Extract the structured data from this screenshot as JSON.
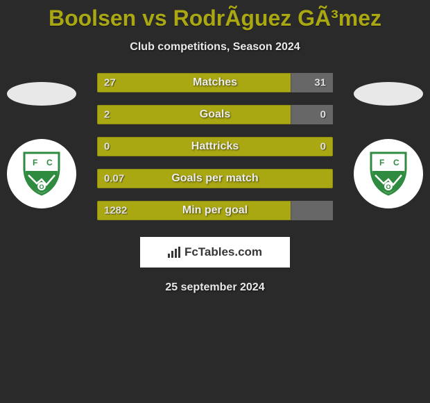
{
  "title": "Boolsen vs RodrÃ­guez GÃ³mez",
  "subtitle": "Club competitions, Season 2024",
  "date": "25 september 2024",
  "brand": "FcTables.com",
  "colors": {
    "accent": "#a9a712",
    "fill_right": "#676767",
    "background": "#2a2a2a",
    "text": "#ffffff",
    "brand_bg": "#ffffff",
    "brand_text": "#363636"
  },
  "bars": [
    {
      "label": "Matches",
      "left": "27",
      "right": "31",
      "right_fill_pct": 18
    },
    {
      "label": "Goals",
      "left": "2",
      "right": "0",
      "right_fill_pct": 18
    },
    {
      "label": "Hattricks",
      "left": "0",
      "right": "0",
      "right_fill_pct": 0
    },
    {
      "label": "Goals per match",
      "left": "0.07",
      "right": "",
      "right_fill_pct": 0
    },
    {
      "label": "Min per goal",
      "left": "1282",
      "right": "",
      "right_fill_pct": 18
    }
  ],
  "club_badge": {
    "shield_color": "#2e8b3f",
    "shield_stroke": "#1f6b2d",
    "top_color": "#ffffff",
    "letter_left": "F",
    "letter_right": "C",
    "letter_bottom": "O"
  }
}
